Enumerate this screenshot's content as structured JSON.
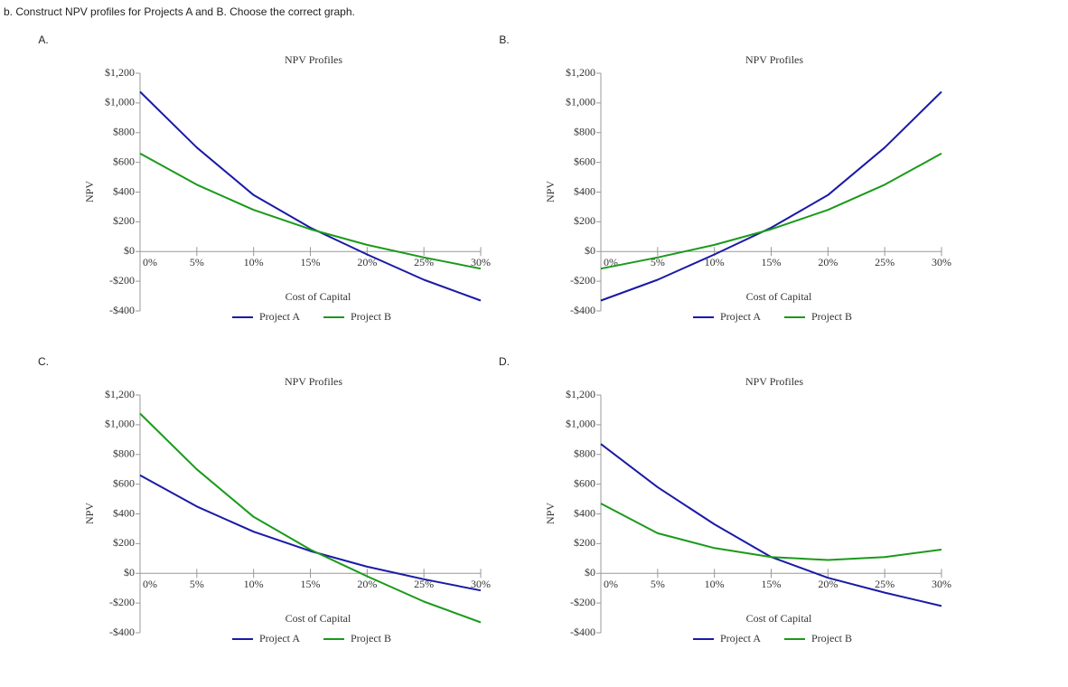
{
  "question": "b. Construct NPV profiles for Projects A and B. Choose the correct graph.",
  "chart_data": [
    {
      "label": "A.",
      "type": "line",
      "title": "NPV Profiles",
      "xlabel": "Cost of Capital",
      "ylabel": "NPV",
      "x": [
        0,
        5,
        10,
        15,
        20,
        25,
        30
      ],
      "series": [
        {
          "name": "Project A",
          "color": "#1a1aa6",
          "values": [
            1075,
            700,
            380,
            160,
            -20,
            -190,
            -330
          ]
        },
        {
          "name": "Project B",
          "color": "#1a9a1a",
          "values": [
            660,
            450,
            280,
            150,
            45,
            -40,
            -115
          ]
        }
      ],
      "xlim": [
        0,
        30
      ],
      "ylim": [
        -400,
        1200
      ],
      "xticks": [
        {
          "value": 0,
          "label": "0%"
        },
        {
          "value": 5,
          "label": "5%"
        },
        {
          "value": 10,
          "label": "10%"
        },
        {
          "value": 15,
          "label": "15%"
        },
        {
          "value": 20,
          "label": "20%"
        },
        {
          "value": 25,
          "label": "25%"
        },
        {
          "value": 30,
          "label": "30%"
        }
      ],
      "yticks": [
        {
          "value": 1200,
          "label": "$1,200"
        },
        {
          "value": 1000,
          "label": "$1,000"
        },
        {
          "value": 800,
          "label": "$800"
        },
        {
          "value": 600,
          "label": "$600"
        },
        {
          "value": 400,
          "label": "$400"
        },
        {
          "value": 200,
          "label": "$200"
        },
        {
          "value": 0,
          "label": "$0"
        },
        {
          "value": -200,
          "label": "-$200"
        },
        {
          "value": -400,
          "label": "-$400"
        }
      ]
    },
    {
      "label": "B.",
      "type": "line",
      "title": "NPV Profiles",
      "xlabel": "Cost of Capital",
      "ylabel": "NPV",
      "x": [
        0,
        5,
        10,
        15,
        20,
        25,
        30
      ],
      "series": [
        {
          "name": "Project A",
          "color": "#1a1aa6",
          "values": [
            -330,
            -190,
            -20,
            160,
            380,
            700,
            1075
          ]
        },
        {
          "name": "Project B",
          "color": "#1a9a1a",
          "values": [
            -115,
            -40,
            45,
            150,
            280,
            450,
            660
          ]
        }
      ],
      "xlim": [
        0,
        30
      ],
      "ylim": [
        -400,
        1200
      ],
      "xticks": [
        {
          "value": 0,
          "label": "0%"
        },
        {
          "value": 5,
          "label": "5%"
        },
        {
          "value": 10,
          "label": "10%"
        },
        {
          "value": 15,
          "label": "15%"
        },
        {
          "value": 20,
          "label": "20%"
        },
        {
          "value": 25,
          "label": "25%"
        },
        {
          "value": 30,
          "label": "30%"
        }
      ],
      "yticks": [
        {
          "value": 1200,
          "label": "$1,200"
        },
        {
          "value": 1000,
          "label": "$1,000"
        },
        {
          "value": 800,
          "label": "$800"
        },
        {
          "value": 600,
          "label": "$600"
        },
        {
          "value": 400,
          "label": "$400"
        },
        {
          "value": 200,
          "label": "$200"
        },
        {
          "value": 0,
          "label": "$0"
        },
        {
          "value": -200,
          "label": "-$200"
        },
        {
          "value": -400,
          "label": "-$400"
        }
      ]
    },
    {
      "label": "C.",
      "type": "line",
      "title": "NPV Profiles",
      "xlabel": "Cost of Capital",
      "ylabel": "NPV",
      "x": [
        0,
        5,
        10,
        15,
        20,
        25,
        30
      ],
      "series": [
        {
          "name": "Project A",
          "color": "#1a1aa6",
          "values": [
            660,
            450,
            280,
            150,
            45,
            -40,
            -115
          ]
        },
        {
          "name": "Project B",
          "color": "#1a9a1a",
          "values": [
            1075,
            700,
            380,
            160,
            -20,
            -190,
            -330
          ]
        }
      ],
      "xlim": [
        0,
        30
      ],
      "ylim": [
        -400,
        1200
      ],
      "xticks": [
        {
          "value": 0,
          "label": "0%"
        },
        {
          "value": 5,
          "label": "5%"
        },
        {
          "value": 10,
          "label": "10%"
        },
        {
          "value": 15,
          "label": "15%"
        },
        {
          "value": 20,
          "label": "20%"
        },
        {
          "value": 25,
          "label": "25%"
        },
        {
          "value": 30,
          "label": "30%"
        }
      ],
      "yticks": [
        {
          "value": 1200,
          "label": "$1,200"
        },
        {
          "value": 1000,
          "label": "$1,000"
        },
        {
          "value": 800,
          "label": "$800"
        },
        {
          "value": 600,
          "label": "$600"
        },
        {
          "value": 400,
          "label": "$400"
        },
        {
          "value": 200,
          "label": "$200"
        },
        {
          "value": 0,
          "label": "$0"
        },
        {
          "value": -200,
          "label": "-$200"
        },
        {
          "value": -400,
          "label": "-$400"
        }
      ]
    },
    {
      "label": "D.",
      "type": "line",
      "title": "NPV Profiles",
      "xlabel": "Cost of Capital",
      "ylabel": "NPV",
      "x": [
        0,
        5,
        10,
        15,
        20,
        25,
        30
      ],
      "series": [
        {
          "name": "Project A",
          "color": "#1a1aa6",
          "values": [
            870,
            580,
            330,
            110,
            -30,
            -130,
            -220
          ]
        },
        {
          "name": "Project B",
          "color": "#1a9a1a",
          "values": [
            470,
            270,
            170,
            110,
            90,
            110,
            160
          ]
        }
      ],
      "xlim": [
        0,
        30
      ],
      "ylim": [
        -400,
        1200
      ],
      "xticks": [
        {
          "value": 0,
          "label": "0%"
        },
        {
          "value": 5,
          "label": "5%"
        },
        {
          "value": 10,
          "label": "10%"
        },
        {
          "value": 15,
          "label": "15%"
        },
        {
          "value": 20,
          "label": "20%"
        },
        {
          "value": 25,
          "label": "25%"
        },
        {
          "value": 30,
          "label": "30%"
        }
      ],
      "yticks": [
        {
          "value": 1200,
          "label": "$1,200"
        },
        {
          "value": 1000,
          "label": "$1,000"
        },
        {
          "value": 800,
          "label": "$800"
        },
        {
          "value": 600,
          "label": "$600"
        },
        {
          "value": 400,
          "label": "$400"
        },
        {
          "value": 200,
          "label": "$200"
        },
        {
          "value": 0,
          "label": "$0"
        },
        {
          "value": -200,
          "label": "-$200"
        },
        {
          "value": -400,
          "label": "-$400"
        }
      ]
    }
  ]
}
